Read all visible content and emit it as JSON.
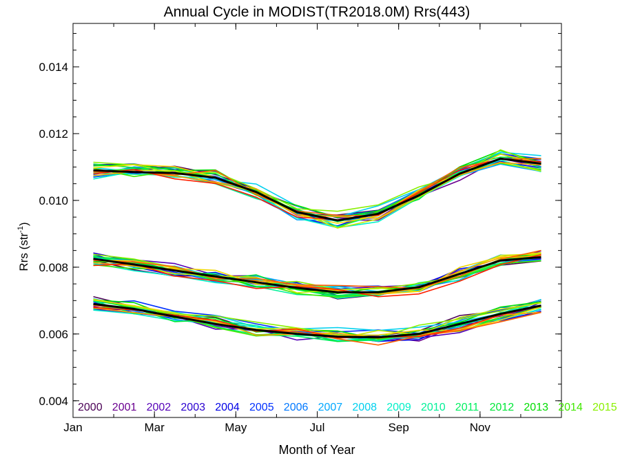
{
  "chart_data": {
    "type": "line",
    "title": "Annual Cycle in MODIST(TR2018.0M) Rrs(443)",
    "xlabel": "Month of Year",
    "ylabel": "Rrs (str",
    "ylabel_sup": "-1",
    "ylabel_close": ")",
    "xlim": [
      1,
      13
    ],
    "ylim": [
      0.0035,
      0.0153
    ],
    "x_ticks": [
      {
        "value": 1,
        "label": "Jan"
      },
      {
        "value": 3,
        "label": "Mar"
      },
      {
        "value": 5,
        "label": "May"
      },
      {
        "value": 7,
        "label": "Jul"
      },
      {
        "value": 9,
        "label": "Sep"
      },
      {
        "value": 11,
        "label": "Nov"
      }
    ],
    "y_ticks": [
      {
        "value": 0.004,
        "label": "0.004"
      },
      {
        "value": 0.006,
        "label": "0.006"
      },
      {
        "value": 0.008,
        "label": "0.008"
      },
      {
        "value": 0.01,
        "label": "0.010"
      },
      {
        "value": 0.012,
        "label": "0.012"
      },
      {
        "value": 0.014,
        "label": "0.014"
      }
    ],
    "grid": false,
    "legend_position": "bottom",
    "x": [
      1.5,
      2.5,
      3.5,
      4.5,
      5.5,
      6.5,
      7.5,
      8.5,
      9.5,
      10.5,
      11.5,
      12.5
    ],
    "mean_color": "#000000",
    "mean_groups": [
      [
        0.0109,
        0.01085,
        0.01082,
        0.01068,
        0.01025,
        0.00965,
        0.0094,
        0.0096,
        0.01015,
        0.0108,
        0.01125,
        0.0111
      ],
      [
        0.00825,
        0.00808,
        0.0079,
        0.00772,
        0.00755,
        0.00738,
        0.00725,
        0.00725,
        0.0074,
        0.0078,
        0.0082,
        0.0083
      ],
      [
        0.0069,
        0.00675,
        0.00652,
        0.0063,
        0.00612,
        0.006,
        0.00592,
        0.0059,
        0.006,
        0.0063,
        0.0066,
        0.00685
      ]
    ],
    "series": [
      {
        "name": "2000",
        "color": "#4a0055"
      },
      {
        "name": "2001",
        "color": "#6a0090"
      },
      {
        "name": "2002",
        "color": "#5500b8"
      },
      {
        "name": "2003",
        "color": "#2a00d0"
      },
      {
        "name": "2004",
        "color": "#0000e6"
      },
      {
        "name": "2005",
        "color": "#0030ff"
      },
      {
        "name": "2006",
        "color": "#0078ff"
      },
      {
        "name": "2007",
        "color": "#00a8ff"
      },
      {
        "name": "2008",
        "color": "#00d0ee"
      },
      {
        "name": "2009",
        "color": "#00f0c8"
      },
      {
        "name": "2010",
        "color": "#00f098"
      },
      {
        "name": "2011",
        "color": "#00f060"
      },
      {
        "name": "2012",
        "color": "#00e838"
      },
      {
        "name": "2013",
        "color": "#00dd00"
      },
      {
        "name": "2014",
        "color": "#40e800"
      },
      {
        "name": "2015",
        "color": "#88f000"
      },
      {
        "name": "",
        "color": "#c8e800"
      },
      {
        "name": "",
        "color": "#f0d800"
      },
      {
        "name": "",
        "color": "#ffa000"
      },
      {
        "name": "",
        "color": "#ff6000"
      },
      {
        "name": "",
        "color": "#ff2000"
      }
    ]
  }
}
